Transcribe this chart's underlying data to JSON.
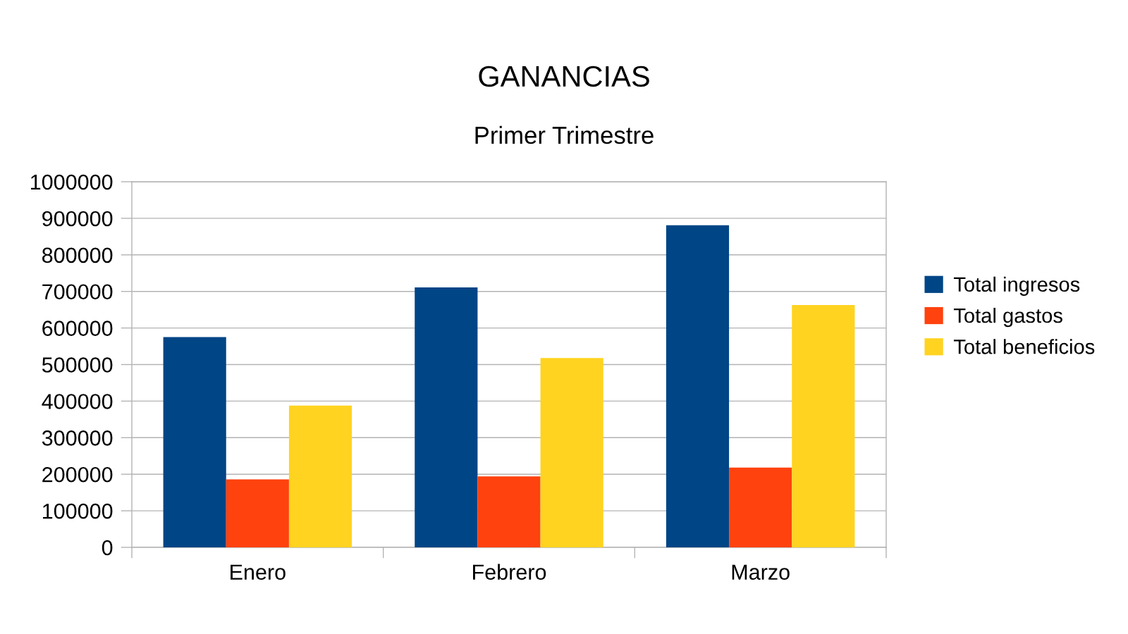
{
  "chart_data": {
    "type": "bar",
    "title": "GANANCIAS",
    "subtitle": "Primer Trimestre",
    "categories": [
      "Enero",
      "Febrero",
      "Marzo"
    ],
    "series": [
      {
        "name": "Total ingresos",
        "color": "#004586",
        "values": [
          575000,
          711000,
          881000
        ]
      },
      {
        "name": "Total gastos",
        "color": "#ff420e",
        "values": [
          186000,
          194000,
          218000
        ]
      },
      {
        "name": "Total beneficios",
        "color": "#ffd320",
        "values": [
          388000,
          518000,
          663000
        ]
      }
    ],
    "ylim": [
      0,
      1000000
    ],
    "yticks": [
      0,
      100000,
      200000,
      300000,
      400000,
      500000,
      600000,
      700000,
      800000,
      900000,
      1000000
    ],
    "grid": "y",
    "legend": "right"
  }
}
